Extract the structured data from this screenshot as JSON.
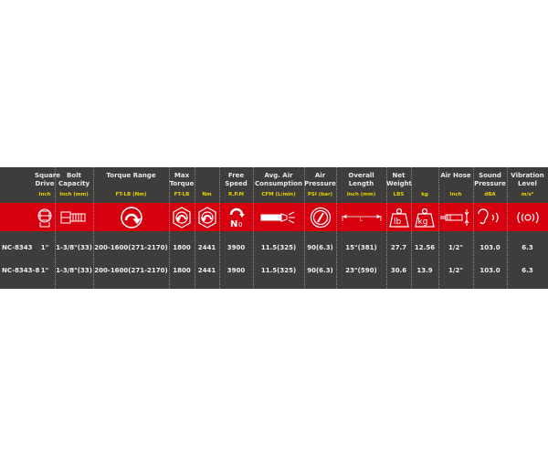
{
  "columns": [
    {
      "key": "model",
      "title": "",
      "unit": "",
      "icon": ""
    },
    {
      "key": "square_drive",
      "title": "Square Drive",
      "unit": "Inch",
      "icon": "square-drive-icon"
    },
    {
      "key": "bolt_capacity",
      "title": "Bolt Capacity",
      "unit": "Inch (mm)",
      "icon": "bolt-icon"
    },
    {
      "key": "torque_range",
      "title": "Torque Range",
      "unit": "FT-LB (Nm)",
      "icon": "torque-arrow-icon"
    },
    {
      "key": "max_torque_ftlb",
      "title": "Max Torque",
      "unit": "FT-LB",
      "icon": "max-torque-icon"
    },
    {
      "key": "max_torque_nm",
      "title": "",
      "unit": "Nm",
      "icon": "max-torque-icon"
    },
    {
      "key": "free_speed",
      "title": "Free Speed",
      "unit": "R.P.M",
      "icon": "free-speed-icon"
    },
    {
      "key": "air_consumption",
      "title": "Avg. Air Consumption",
      "unit": "CFM (L/min)",
      "icon": "air-consumption-icon"
    },
    {
      "key": "air_pressure",
      "title": "Air Pressure",
      "unit": "PSI (bar)",
      "icon": "pressure-gauge-icon"
    },
    {
      "key": "overall_length",
      "title": "Overall Length",
      "unit": "Inch (mm)",
      "icon": "length-icon"
    },
    {
      "key": "weight_lbs",
      "title": "Net Weight",
      "unit": "LBS",
      "icon": "weight-lb-icon"
    },
    {
      "key": "weight_kg",
      "title": "",
      "unit": "kg",
      "icon": "weight-kg-icon"
    },
    {
      "key": "air_hose",
      "title": "Air Hose",
      "unit": "Inch",
      "icon": "air-hose-icon"
    },
    {
      "key": "sound_pressure",
      "title": "Sound Pressure",
      "unit": "dBA",
      "icon": "ear-sound-icon"
    },
    {
      "key": "vibration",
      "title": "Vibration Level",
      "unit": "m/s²",
      "icon": "vibration-icon"
    }
  ],
  "rows": [
    [
      "NC-8343",
      "1\"",
      "1-3/8\"(33)",
      "200-1600(271-2170)",
      "1800",
      "2441",
      "3900",
      "11.5(325)",
      "90(6.3)",
      "15\"(381)",
      "27.7",
      "12.56",
      "1/2\"",
      "103.0",
      "6.3"
    ],
    [
      "NC-8343-8",
      "1\"",
      "1-3/8\"(33)",
      "200-1600(271-2170)",
      "1800",
      "2441",
      "3900",
      "11.5(325)",
      "90(6.3)",
      "23\"(590)",
      "30.6",
      "13.9",
      "1/2\"",
      "103.0",
      "6.3"
    ]
  ],
  "icon_labels": {
    "lb": "lb",
    "kg": "kg",
    "n0": "N0"
  },
  "colors": {
    "band": "#3e3d3c",
    "accent": "#d7000f",
    "unit": "#e6d200"
  }
}
